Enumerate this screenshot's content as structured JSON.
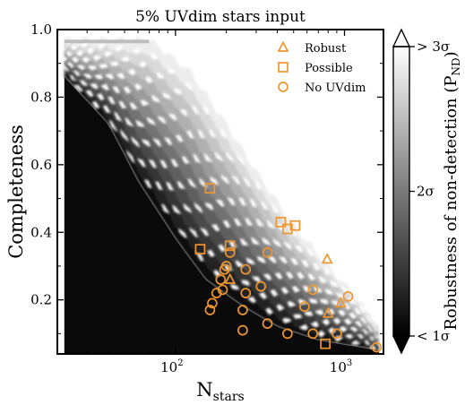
{
  "chart_data": {
    "type": "scatter",
    "title": "5% UVdim stars input",
    "xlabel": "N_stars",
    "ylabel": "Completeness",
    "xscale": "log",
    "xlim": [
      20,
      1700
    ],
    "ylim": [
      0.04,
      1.0
    ],
    "x_ticks": [
      {
        "value": 100,
        "base": "10",
        "exp": "2"
      },
      {
        "value": 1000,
        "base": "10",
        "exp": "3"
      }
    ],
    "y_ticks": [
      {
        "value": 0.2,
        "label": "0.2"
      },
      {
        "value": 0.4,
        "label": "0.4"
      },
      {
        "value": 0.6,
        "label": "0.6"
      },
      {
        "value": 0.8,
        "label": "0.8"
      },
      {
        "value": 1.0,
        "label": "1.0"
      }
    ],
    "marker_color": "#f0962f",
    "legend": {
      "placement": "top-right",
      "entries": [
        {
          "label": "Robust",
          "marker": "triangle"
        },
        {
          "label": "Possible",
          "marker": "square"
        },
        {
          "label": "No UVdim",
          "marker": "circle"
        }
      ]
    },
    "colorbar": {
      "label": "Robustness of non-detection (P_ND)",
      "label_main": "Robustness of non-detection (P",
      "label_sub": "ND",
      "label_end": ")",
      "colormap": "greys",
      "ticks": [
        {
          "pos": 0.0,
          "label": "< 1σ"
        },
        {
          "pos": 0.5,
          "label": "2σ"
        },
        {
          "pos": 1.0,
          "label": "> 3σ"
        }
      ]
    },
    "background_map": {
      "description_none": "",
      "black_boundary": [
        [
          22,
          0.86
        ],
        [
          40,
          0.72
        ],
        [
          60,
          0.55
        ],
        [
          100,
          0.38
        ],
        [
          150,
          0.26
        ],
        [
          250,
          0.18
        ],
        [
          400,
          0.12
        ],
        [
          700,
          0.08
        ],
        [
          1600,
          0.05
        ]
      ],
      "white_boundary": [
        [
          22,
          0.97
        ],
        [
          70,
          0.97
        ],
        [
          120,
          0.88
        ],
        [
          200,
          0.72
        ],
        [
          300,
          0.58
        ],
        [
          500,
          0.42
        ],
        [
          800,
          0.3
        ],
        [
          1200,
          0.2
        ],
        [
          1600,
          0.12
        ]
      ]
    },
    "series": [
      {
        "name": "Robust",
        "marker": "triangle",
        "points": [
          [
            210,
            0.26
          ],
          [
            790,
            0.32
          ],
          [
            800,
            0.16
          ],
          [
            950,
            0.19
          ]
        ]
      },
      {
        "name": "Possible",
        "marker": "square",
        "points": [
          [
            160,
            0.53
          ],
          [
            140,
            0.35
          ],
          [
            210,
            0.36
          ],
          [
            420,
            0.43
          ],
          [
            460,
            0.41
          ],
          [
            510,
            0.42
          ],
          [
            770,
            0.07
          ]
        ]
      },
      {
        "name": "No UVdim",
        "marker": "circle",
        "points": [
          [
            210,
            0.34
          ],
          [
            200,
            0.3
          ],
          [
            195,
            0.29
          ],
          [
            185,
            0.26
          ],
          [
            190,
            0.23
          ],
          [
            175,
            0.22
          ],
          [
            165,
            0.19
          ],
          [
            160,
            0.17
          ],
          [
            260,
            0.29
          ],
          [
            320,
            0.24
          ],
          [
            260,
            0.22
          ],
          [
            250,
            0.17
          ],
          [
            250,
            0.11
          ],
          [
            350,
            0.34
          ],
          [
            350,
            0.13
          ],
          [
            460,
            0.1
          ],
          [
            580,
            0.18
          ],
          [
            650,
            0.23
          ],
          [
            650,
            0.1
          ],
          [
            900,
            0.1
          ],
          [
            1050,
            0.21
          ],
          [
            1550,
            0.06
          ]
        ]
      }
    ]
  }
}
